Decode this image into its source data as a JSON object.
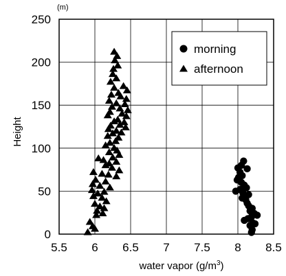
{
  "chart_data": {
    "type": "scatter",
    "title": "",
    "xlabel": "water vapor (g/m³)",
    "ylabel": "Height",
    "y_unit": "(m)",
    "xlim": [
      5.5,
      8.5
    ],
    "ylim": [
      0,
      250
    ],
    "xticks": [
      "5.5",
      "6",
      "6.5",
      "7",
      "7.5",
      "8",
      "8.5"
    ],
    "yticks": [
      "0",
      "50",
      "100",
      "150",
      "200",
      "250"
    ],
    "grid": true,
    "legend_position": "top-right",
    "series": [
      {
        "name": "morning",
        "marker": "circle",
        "color": "#000000",
        "points": [
          [
            8.08,
            85
          ],
          [
            8.05,
            80
          ],
          [
            8.13,
            76
          ],
          [
            8.0,
            77
          ],
          [
            8.03,
            72
          ],
          [
            8.06,
            68
          ],
          [
            8.01,
            66
          ],
          [
            7.99,
            63
          ],
          [
            8.05,
            60
          ],
          [
            8.09,
            57
          ],
          [
            8.12,
            54
          ],
          [
            8.03,
            52
          ],
          [
            7.97,
            50
          ],
          [
            8.07,
            48
          ],
          [
            8.15,
            46
          ],
          [
            8.1,
            44
          ],
          [
            8.06,
            42
          ],
          [
            8.11,
            40
          ],
          [
            8.13,
            36
          ],
          [
            8.15,
            33
          ],
          [
            8.2,
            30
          ],
          [
            8.17,
            27
          ],
          [
            8.23,
            24
          ],
          [
            8.27,
            22
          ],
          [
            8.19,
            20
          ],
          [
            8.14,
            18
          ],
          [
            8.09,
            16
          ],
          [
            8.21,
            13
          ],
          [
            8.17,
            10
          ],
          [
            8.24,
            12
          ],
          [
            8.2,
            5
          ],
          [
            8.19,
            2
          ]
        ]
      },
      {
        "name": "afternoon",
        "marker": "triangle",
        "color": "#000000",
        "points": [
          [
            6.27,
            212
          ],
          [
            6.31,
            207
          ],
          [
            6.28,
            202
          ],
          [
            6.32,
            196
          ],
          [
            6.26,
            192
          ],
          [
            6.25,
            186
          ],
          [
            6.3,
            181
          ],
          [
            6.22,
            177
          ],
          [
            6.4,
            172
          ],
          [
            6.45,
            167
          ],
          [
            6.27,
            170
          ],
          [
            6.33,
            164
          ],
          [
            6.36,
            160
          ],
          [
            6.23,
            162
          ],
          [
            6.44,
            157
          ],
          [
            6.2,
            155
          ],
          [
            6.42,
            151
          ],
          [
            6.3,
            152
          ],
          [
            6.24,
            148
          ],
          [
            6.35,
            146
          ],
          [
            6.46,
            144
          ],
          [
            6.21,
            142
          ],
          [
            6.38,
            140
          ],
          [
            6.44,
            137
          ],
          [
            6.18,
            138
          ],
          [
            6.32,
            133
          ],
          [
            6.41,
            130
          ],
          [
            6.27,
            131
          ],
          [
            6.35,
            127
          ],
          [
            6.22,
            126
          ],
          [
            6.43,
            124
          ],
          [
            6.19,
            122
          ],
          [
            6.3,
            120
          ],
          [
            6.37,
            118
          ],
          [
            6.25,
            117
          ],
          [
            6.18,
            114
          ],
          [
            6.33,
            112
          ],
          [
            6.29,
            108
          ],
          [
            6.21,
            106
          ],
          [
            6.15,
            103
          ],
          [
            6.27,
            100
          ],
          [
            6.31,
            97
          ],
          [
            6.2,
            95
          ],
          [
            6.34,
            92
          ],
          [
            6.25,
            89
          ],
          [
            6.05,
            88
          ],
          [
            6.12,
            86
          ],
          [
            6.3,
            84
          ],
          [
            6.2,
            82
          ],
          [
            6.15,
            80
          ],
          [
            6.24,
            77
          ],
          [
            6.34,
            74
          ],
          [
            5.98,
            72
          ],
          [
            6.1,
            70
          ],
          [
            6.19,
            69
          ],
          [
            6.3,
            67
          ],
          [
            6.01,
            63
          ],
          [
            6.15,
            61
          ],
          [
            5.97,
            58
          ],
          [
            6.07,
            56
          ],
          [
            6.21,
            54
          ],
          [
            5.96,
            51
          ],
          [
            6.13,
            49
          ],
          [
            6.04,
            47
          ],
          [
            5.98,
            44
          ],
          [
            6.1,
            42
          ],
          [
            6.16,
            38
          ],
          [
            6.0,
            35
          ],
          [
            6.07,
            32
          ],
          [
            6.13,
            30
          ],
          [
            6.03,
            27
          ],
          [
            6.11,
            24
          ],
          [
            6.02,
            22
          ],
          [
            5.93,
            14
          ],
          [
            5.97,
            9
          ],
          [
            6.0,
            6
          ],
          [
            5.9,
            2
          ]
        ]
      }
    ]
  }
}
